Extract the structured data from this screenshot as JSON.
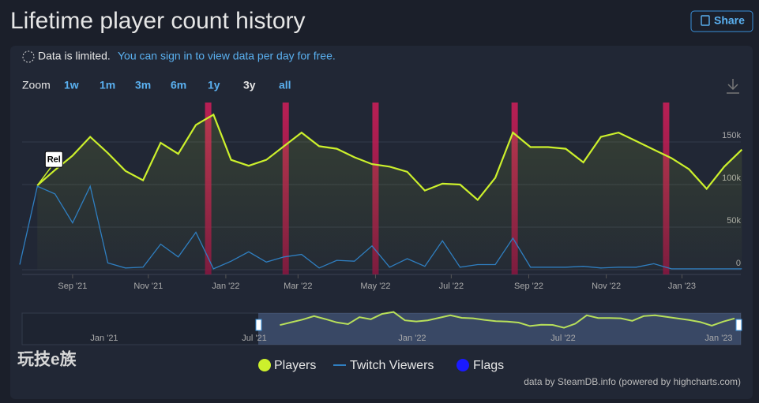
{
  "header": {
    "title": "Lifetime player count history",
    "share": "Share"
  },
  "notice": {
    "strong": "Data is limited.",
    "link": "You can sign in to view data per day for free."
  },
  "zoom": {
    "label": "Zoom",
    "options": [
      "1w",
      "1m",
      "3m",
      "6m",
      "1y",
      "3y",
      "all"
    ]
  },
  "chart_data": {
    "type": "line",
    "series": [
      {
        "name": "Players",
        "color": "#ccf02c",
        "values": [
          null,
          99000,
          117000,
          134000,
          156000,
          137000,
          116000,
          105000,
          149000,
          136000,
          170000,
          182000,
          129000,
          122000,
          129000,
          145000,
          161000,
          145000,
          142000,
          132000,
          124000,
          121000,
          115000,
          93000,
          101000,
          100000,
          82000,
          108000,
          161000,
          144000,
          144000,
          142000,
          126000,
          156000,
          161000,
          151000,
          141000,
          131000,
          118000,
          95000,
          121000,
          141000
        ]
      },
      {
        "name": "Twitch Viewers",
        "color": "#2f7fc1",
        "values": [
          6000,
          98000,
          89000,
          55000,
          98000,
          8000,
          2000,
          3000,
          30000,
          15000,
          44000,
          1000,
          10000,
          21000,
          9000,
          15000,
          18000,
          2000,
          11000,
          10000,
          28000,
          3000,
          13000,
          4000,
          34000,
          3000,
          6000,
          6000,
          37000,
          3000,
          3000,
          3000,
          4000,
          2000,
          3000,
          3000,
          7000,
          1000,
          1000,
          1000,
          1000,
          1000
        ]
      }
    ],
    "flags_name": "Flags",
    "flags_color": "#1a1aff",
    "flags": [
      10.7,
      15.1,
      20.2,
      28.1,
      36.7
    ],
    "annotation": "Rel",
    "ylim": [
      0,
      200000
    ],
    "yticks": [
      0,
      {
        "value": 50000,
        "label": "50k"
      },
      {
        "value": 100000,
        "label": "100k"
      },
      {
        "value": 150000,
        "label": "150k"
      }
    ],
    "xticks": [
      {
        "value": 3,
        "label": "Sep '21"
      },
      {
        "value": 7.3,
        "label": "Nov '21"
      },
      {
        "value": 11.7,
        "label": "Jan '22"
      },
      {
        "value": 15.8,
        "label": "Mar '22"
      },
      {
        "value": 20.2,
        "label": "May '22"
      },
      {
        "value": 24.5,
        "label": "Jul '22"
      },
      {
        "value": 28.9,
        "label": "Sep '22"
      },
      {
        "value": 33.3,
        "label": "Nov '22"
      },
      {
        "value": 37.6,
        "label": "Jan '23"
      }
    ],
    "grid": true,
    "navigator_labels": [
      "Jan '21",
      "Jul '21",
      "Jan '22",
      "Jul '22",
      "Jan '23"
    ]
  },
  "watermark": "玩技e族",
  "credit": "data by SteamDB.info (powered by highcharts.com)"
}
